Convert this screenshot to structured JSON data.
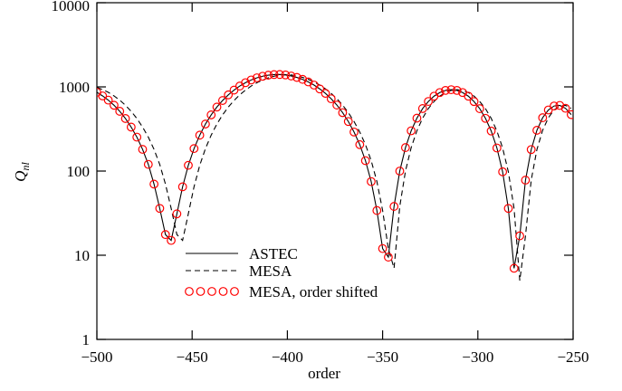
{
  "chart_data": {
    "type": "line",
    "xlabel": "order",
    "ylabel": "Q",
    "ylabel_sub": "nl",
    "x": [
      -500,
      -497,
      -494,
      -491,
      -488,
      -485,
      -482,
      -479,
      -476,
      -473,
      -470,
      -467,
      -464,
      -461,
      -458,
      -455,
      -452,
      -449,
      -446,
      -443,
      -440,
      -437,
      -434,
      -431,
      -428,
      -425,
      -422,
      -419,
      -416,
      -413,
      -410,
      -407,
      -404,
      -401,
      -398,
      -395,
      -392,
      -389,
      -386,
      -383,
      -380,
      -377,
      -374,
      -371,
      -368,
      -365,
      -362,
      -359,
      -356,
      -353,
      -350,
      -347,
      -344,
      -341,
      -338,
      -335,
      -332,
      -329,
      -326,
      -323,
      -320,
      -317,
      -314,
      -311,
      -308,
      -305,
      -302,
      -299,
      -296,
      -293,
      -290,
      -287,
      -284,
      -281,
      -278,
      -275,
      -272,
      -269,
      -266,
      -263,
      -260,
      -257,
      -254,
      -251
    ],
    "series": [
      {
        "name": "ASTEC",
        "color": "#000000",
        "style": "solid",
        "values": [
          862,
          781,
          696,
          605,
          513,
          421,
          333,
          253,
          181,
          120,
          70,
          36,
          17.6,
          15,
          31,
          65,
          117,
          185,
          267,
          362,
          465,
          576,
          689,
          804,
          916,
          1023,
          1121,
          1208,
          1282,
          1338,
          1378,
          1400,
          1403,
          1387,
          1347,
          1295,
          1228,
          1145,
          1051,
          946,
          837,
          723,
          608,
          494,
          388,
          291,
          206,
          133,
          75,
          34,
          12,
          9.5,
          38,
          100,
          190,
          301,
          425,
          553,
          671,
          776,
          857,
          908,
          926,
          908,
          857,
          776,
          669,
          551,
          423,
          299,
          188,
          98,
          36,
          7,
          17,
          78,
          180,
          305,
          430,
          532,
          593,
          602,
          557,
          468
        ]
      },
      {
        "name": "MESA",
        "color": "#000000",
        "style": "dashed",
        "values": [
          986,
          929,
          862,
          781,
          696,
          605,
          513,
          421,
          333,
          253,
          181,
          120,
          70,
          36,
          17.6,
          15,
          31,
          65,
          117,
          185,
          267,
          362,
          465,
          576,
          689,
          804,
          916,
          1023,
          1121,
          1208,
          1282,
          1338,
          1378,
          1400,
          1387,
          1347,
          1295,
          1228,
          1145,
          1051,
          946,
          837,
          723,
          608,
          494,
          388,
          291,
          206,
          133,
          75,
          34,
          12,
          7,
          38,
          100,
          190,
          301,
          425,
          553,
          671,
          776,
          857,
          908,
          926,
          908,
          857,
          776,
          669,
          551,
          423,
          299,
          188,
          98,
          36,
          5,
          17,
          78,
          180,
          305,
          430,
          532,
          593,
          602,
          557
        ]
      },
      {
        "name": "MESA, order shifted",
        "color": "#ff0000",
        "style": "circles",
        "values": [
          862,
          781,
          696,
          605,
          513,
          421,
          333,
          253,
          181,
          120,
          70,
          36,
          17.6,
          15,
          31,
          65,
          117,
          185,
          267,
          362,
          465,
          576,
          689,
          804,
          916,
          1023,
          1121,
          1208,
          1282,
          1338,
          1378,
          1400,
          1403,
          1387,
          1347,
          1295,
          1228,
          1145,
          1051,
          946,
          837,
          723,
          608,
          494,
          388,
          291,
          206,
          133,
          75,
          34,
          12,
          9.5,
          38,
          100,
          190,
          301,
          425,
          553,
          671,
          776,
          857,
          908,
          926,
          908,
          857,
          776,
          669,
          551,
          423,
          299,
          188,
          98,
          36,
          7,
          17,
          78,
          180,
          305,
          430,
          532,
          593,
          602,
          557,
          468
        ]
      }
    ],
    "xlim": [
      -500,
      -250
    ],
    "xticks": [
      {
        "value": -500,
        "label": "−500"
      },
      {
        "value": -450,
        "label": "−450"
      },
      {
        "value": -400,
        "label": "−400"
      },
      {
        "value": -350,
        "label": "−350"
      },
      {
        "value": -300,
        "label": "−300"
      },
      {
        "value": -250,
        "label": "−250"
      }
    ],
    "ylim": [
      1,
      10000
    ],
    "yticks": [
      1,
      10,
      100,
      1000,
      10000
    ],
    "log_y": true,
    "legend": "lower left"
  }
}
